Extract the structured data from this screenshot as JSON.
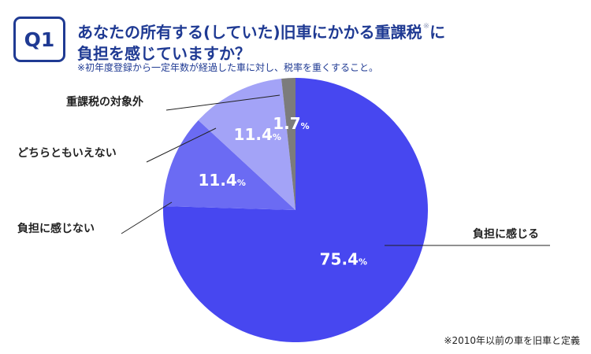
{
  "badge": "Q1",
  "title_line1": "あなたの所有する(していた)旧車にかかる重課税",
  "title_mark": "※",
  "title_after_mark": "に",
  "title_line2": "負担を感じていますか？",
  "subtitle": "※初年度登録から一定年数が経過した車に対し、税率を重くすること。",
  "footnote": "※2010年以前の車を旧車と定義",
  "colors": {
    "accent": "#1f3a93"
  },
  "chart_data": {
    "type": "pie",
    "start": "12 o'clock",
    "direction": "clockwise",
    "slices": [
      {
        "label": "負担に感じる",
        "value": 75.4,
        "display": "75.4",
        "unit": "%",
        "color": "#4747f0",
        "label_color": "#ffffff"
      },
      {
        "label": "負担に感じない",
        "value": 11.4,
        "display": "11.4",
        "unit": "%",
        "color": "#6b6bf3",
        "label_color": "#ffffff"
      },
      {
        "label": "どちらともいえない",
        "value": 11.4,
        "display": "11.4",
        "unit": "%",
        "color": "#a3a3f7",
        "label_color": "#ffffff"
      },
      {
        "label": "重課税の対象外",
        "value": 1.7,
        "display": "1.7",
        "unit": "%",
        "color": "#7c7c7c",
        "label_color": "#ffffff"
      }
    ]
  }
}
